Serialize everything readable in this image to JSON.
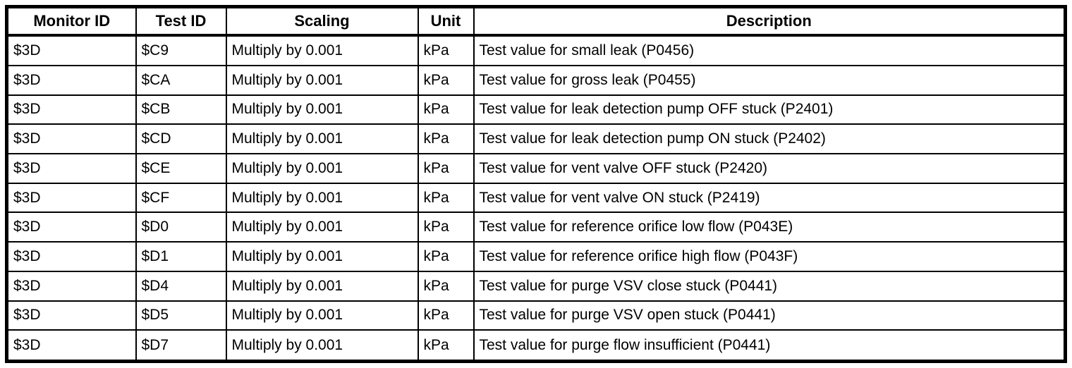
{
  "table": {
    "columns": [
      "Monitor ID",
      "Test ID",
      "Scaling",
      "Unit",
      "Description"
    ],
    "rows": [
      [
        "$3D",
        "$C9",
        "Multiply by 0.001",
        "kPa",
        "Test value for small leak (P0456)"
      ],
      [
        "$3D",
        "$CA",
        "Multiply by 0.001",
        "kPa",
        "Test value for gross leak (P0455)"
      ],
      [
        "$3D",
        "$CB",
        "Multiply by 0.001",
        "kPa",
        "Test value for leak detection pump OFF stuck (P2401)"
      ],
      [
        "$3D",
        "$CD",
        "Multiply by 0.001",
        "kPa",
        "Test value for leak detection pump ON stuck (P2402)"
      ],
      [
        "$3D",
        "$CE",
        "Multiply by 0.001",
        "kPa",
        "Test value for vent valve OFF stuck (P2420)"
      ],
      [
        "$3D",
        "$CF",
        "Multiply by 0.001",
        "kPa",
        "Test value for vent valve ON stuck (P2419)"
      ],
      [
        "$3D",
        "$D0",
        "Multiply by 0.001",
        "kPa",
        "Test value for reference orifice low flow (P043E)"
      ],
      [
        "$3D",
        "$D1",
        "Multiply by 0.001",
        "kPa",
        "Test value for reference orifice high flow (P043F)"
      ],
      [
        "$3D",
        "$D4",
        "Multiply by 0.001",
        "kPa",
        "Test value for purge VSV close stuck (P0441)"
      ],
      [
        "$3D",
        "$D5",
        "Multiply by 0.001",
        "kPa",
        "Test value for purge VSV open stuck (P0441)"
      ],
      [
        "$3D",
        "$D7",
        "Multiply by 0.001",
        "kPa",
        "Test value for purge flow insufficient (P0441)"
      ]
    ]
  },
  "colors": {
    "border": "#000000",
    "text": "#000000",
    "background": "#ffffff"
  }
}
